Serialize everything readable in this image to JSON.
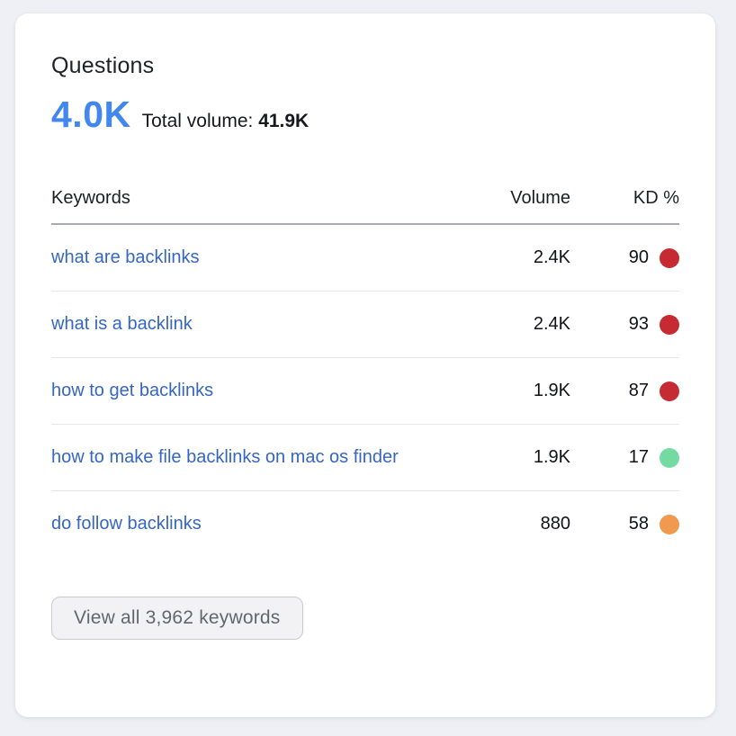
{
  "card": {
    "title": "Questions",
    "metric_value": "4.0K",
    "total_volume_label": "Total volume:",
    "total_volume_value": "41.9K"
  },
  "table": {
    "headers": {
      "keywords": "Keywords",
      "volume": "Volume",
      "kd": "KD %"
    },
    "rows": [
      {
        "keyword": "what are backlinks",
        "volume": "2.4K",
        "kd": "90",
        "kd_color": "#C62B33",
        "kd_level": "very-hard"
      },
      {
        "keyword": "what is a backlink",
        "volume": "2.4K",
        "kd": "93",
        "kd_color": "#C62B33",
        "kd_level": "very-hard"
      },
      {
        "keyword": "how to get backlinks",
        "volume": "1.9K",
        "kd": "87",
        "kd_color": "#C62B33",
        "kd_level": "very-hard"
      },
      {
        "keyword": "how to make file backlinks on mac os finder",
        "volume": "1.9K",
        "kd": "17",
        "kd_color": "#73DBA1",
        "kd_level": "easy"
      },
      {
        "keyword": "do follow backlinks",
        "volume": "880",
        "kd": "58",
        "kd_color": "#F0994F",
        "kd_level": "possible"
      }
    ]
  },
  "footer": {
    "view_all_label": "View all 3,962 keywords"
  },
  "colors": {
    "page_background": "#EEF0F5",
    "card_background": "#FFFFFF",
    "metric_blue": "#4287EE",
    "link_blue": "#3566C4",
    "kd_red": "#C62B33",
    "kd_green": "#73DBA1",
    "kd_orange": "#F0994F",
    "header_border": "#A7AAB1",
    "row_divider": "#E4E6E9"
  }
}
